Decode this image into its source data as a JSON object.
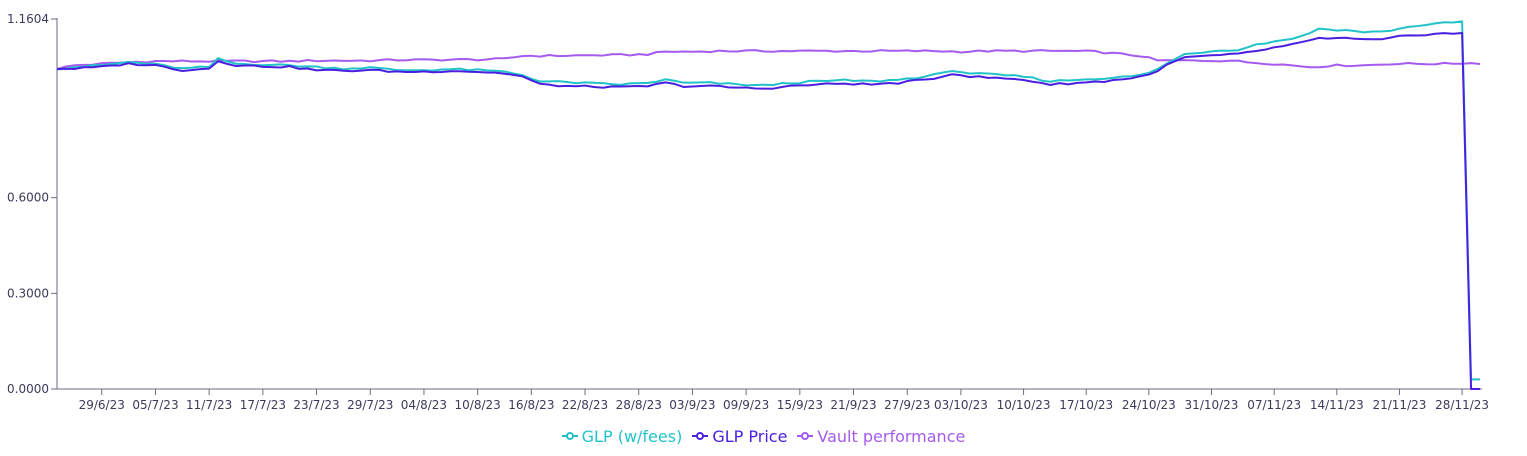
{
  "chart_data": {
    "type": "line",
    "title": "",
    "xlabel": "",
    "ylabel": "",
    "ylim": [
      0,
      1.1604
    ],
    "y_ticks": [
      {
        "value": 0,
        "label": "0.0000"
      },
      {
        "value": 0.3,
        "label": "0.3000"
      },
      {
        "value": 0.6,
        "label": "0.6000"
      },
      {
        "value": 1.1604,
        "label": "1.1604"
      }
    ],
    "x_ticks": [
      {
        "index": 5,
        "label": "29/6/23"
      },
      {
        "index": 11,
        "label": "05/7/23"
      },
      {
        "index": 17,
        "label": "11/7/23"
      },
      {
        "index": 23,
        "label": "17/7/23"
      },
      {
        "index": 29,
        "label": "23/7/23"
      },
      {
        "index": 35,
        "label": "29/7/23"
      },
      {
        "index": 41,
        "label": "04/8/23"
      },
      {
        "index": 47,
        "label": "10/8/23"
      },
      {
        "index": 53,
        "label": "16/8/23"
      },
      {
        "index": 59,
        "label": "22/8/23"
      },
      {
        "index": 65,
        "label": "28/8/23"
      },
      {
        "index": 71,
        "label": "03/9/23"
      },
      {
        "index": 77,
        "label": "09/9/23"
      },
      {
        "index": 83,
        "label": "15/9/23"
      },
      {
        "index": 89,
        "label": "21/9/23"
      },
      {
        "index": 95,
        "label": "27/9/23"
      },
      {
        "index": 101,
        "label": "03/10/23"
      },
      {
        "index": 108,
        "label": "10/10/23"
      },
      {
        "index": 115,
        "label": "17/10/23"
      },
      {
        "index": 122,
        "label": "24/10/23"
      },
      {
        "index": 129,
        "label": "31/10/23"
      },
      {
        "index": 136,
        "label": "07/11/23"
      },
      {
        "index": 143,
        "label": "14/11/23"
      },
      {
        "index": 150,
        "label": "21/11/23"
      },
      {
        "index": 157,
        "label": "28/11/23"
      }
    ],
    "legend_position": "bottom-center",
    "grid": false,
    "colors": {
      "glp_fees": "#22c3c8",
      "glp_price": "#4a1fe0",
      "vault": "#a65bf0",
      "axis": "#6b6b85",
      "text": "#3b3b5c"
    },
    "legend": [
      {
        "label": "GLP (w/fees)",
        "color": "#22c3c8",
        "series_key": "glp_fees"
      },
      {
        "label": "GLP Price",
        "color": "#4a1fe0",
        "series_key": "glp_price"
      },
      {
        "label": "Vault performance",
        "color": "#a65bf0",
        "series_key": "vault"
      }
    ],
    "keyframes": {
      "glp_fees": [
        [
          0,
          1.005
        ],
        [
          2,
          1.01
        ],
        [
          5,
          1.015
        ],
        [
          8,
          1.025
        ],
        [
          11,
          1.018
        ],
        [
          14,
          1.005
        ],
        [
          17,
          1.01
        ],
        [
          18,
          1.035
        ],
        [
          20,
          1.02
        ],
        [
          23,
          1.018
        ],
        [
          26,
          1.015
        ],
        [
          29,
          1.01
        ],
        [
          32,
          1.005
        ],
        [
          35,
          1.008
        ],
        [
          38,
          1.0
        ],
        [
          41,
          1.0
        ],
        [
          44,
          1.003
        ],
        [
          47,
          1.0
        ],
        [
          50,
          0.995
        ],
        [
          52,
          0.985
        ],
        [
          54,
          0.965
        ],
        [
          57,
          0.962
        ],
        [
          60,
          0.958
        ],
        [
          63,
          0.955
        ],
        [
          66,
          0.96
        ],
        [
          68,
          0.97
        ],
        [
          70,
          0.96
        ],
        [
          73,
          0.96
        ],
        [
          76,
          0.955
        ],
        [
          79,
          0.952
        ],
        [
          82,
          0.96
        ],
        [
          85,
          0.965
        ],
        [
          88,
          0.968
        ],
        [
          91,
          0.965
        ],
        [
          94,
          0.97
        ],
        [
          97,
          0.98
        ],
        [
          99,
          0.99
        ],
        [
          100,
          1.0
        ],
        [
          102,
          0.99
        ],
        [
          105,
          0.985
        ],
        [
          108,
          0.98
        ],
        [
          111,
          0.965
        ],
        [
          114,
          0.97
        ],
        [
          117,
          0.975
        ],
        [
          120,
          0.98
        ],
        [
          122,
          0.99
        ],
        [
          124,
          1.02
        ],
        [
          126,
          1.05
        ],
        [
          129,
          1.06
        ],
        [
          132,
          1.065
        ],
        [
          134,
          1.08
        ],
        [
          136,
          1.09
        ],
        [
          138,
          1.1
        ],
        [
          139,
          1.105
        ],
        [
          141,
          1.13
        ],
        [
          144,
          1.125
        ],
        [
          146,
          1.12
        ],
        [
          148,
          1.12
        ],
        [
          150,
          1.13
        ],
        [
          152,
          1.14
        ],
        [
          154,
          1.145
        ],
        [
          156,
          1.15
        ],
        [
          157,
          1.152
        ],
        [
          158,
          0.03
        ],
        [
          159,
          0.03
        ]
      ],
      "glp_price": [
        [
          0,
          1.005
        ],
        [
          2,
          1.005
        ],
        [
          5,
          1.01
        ],
        [
          8,
          1.02
        ],
        [
          11,
          1.015
        ],
        [
          14,
          1.0
        ],
        [
          17,
          1.005
        ],
        [
          18,
          1.03
        ],
        [
          20,
          1.015
        ],
        [
          23,
          1.012
        ],
        [
          26,
          1.01
        ],
        [
          29,
          1.0
        ],
        [
          32,
          0.998
        ],
        [
          35,
          1.0
        ],
        [
          38,
          0.995
        ],
        [
          41,
          0.995
        ],
        [
          44,
          0.998
        ],
        [
          47,
          0.995
        ],
        [
          50,
          0.99
        ],
        [
          52,
          0.98
        ],
        [
          54,
          0.955
        ],
        [
          57,
          0.95
        ],
        [
          60,
          0.948
        ],
        [
          63,
          0.946
        ],
        [
          66,
          0.95
        ],
        [
          68,
          0.96
        ],
        [
          70,
          0.95
        ],
        [
          73,
          0.95
        ],
        [
          76,
          0.945
        ],
        [
          79,
          0.942
        ],
        [
          82,
          0.95
        ],
        [
          85,
          0.955
        ],
        [
          88,
          0.958
        ],
        [
          91,
          0.955
        ],
        [
          94,
          0.96
        ],
        [
          97,
          0.97
        ],
        [
          99,
          0.98
        ],
        [
          100,
          0.99
        ],
        [
          102,
          0.98
        ],
        [
          105,
          0.975
        ],
        [
          108,
          0.97
        ],
        [
          111,
          0.955
        ],
        [
          114,
          0.96
        ],
        [
          117,
          0.965
        ],
        [
          120,
          0.975
        ],
        [
          122,
          0.985
        ],
        [
          124,
          1.015
        ],
        [
          126,
          1.04
        ],
        [
          129,
          1.045
        ],
        [
          132,
          1.05
        ],
        [
          134,
          1.06
        ],
        [
          136,
          1.07
        ],
        [
          138,
          1.08
        ],
        [
          139,
          1.085
        ],
        [
          141,
          1.1
        ],
        [
          144,
          1.1
        ],
        [
          146,
          1.095
        ],
        [
          148,
          1.095
        ],
        [
          150,
          1.105
        ],
        [
          152,
          1.11
        ],
        [
          154,
          1.115
        ],
        [
          156,
          1.115
        ],
        [
          157,
          1.115
        ],
        [
          158,
          0.0
        ],
        [
          159,
          0.0
        ]
      ],
      "vault": [
        [
          0,
          1.005
        ],
        [
          2,
          1.015
        ],
        [
          5,
          1.02
        ],
        [
          8,
          1.025
        ],
        [
          11,
          1.028
        ],
        [
          14,
          1.028
        ],
        [
          17,
          1.028
        ],
        [
          20,
          1.028
        ],
        [
          23,
          1.028
        ],
        [
          26,
          1.028
        ],
        [
          29,
          1.03
        ],
        [
          32,
          1.03
        ],
        [
          35,
          1.03
        ],
        [
          38,
          1.032
        ],
        [
          41,
          1.032
        ],
        [
          44,
          1.033
        ],
        [
          47,
          1.033
        ],
        [
          50,
          1.035
        ],
        [
          52,
          1.045
        ],
        [
          55,
          1.045
        ],
        [
          58,
          1.046
        ],
        [
          61,
          1.047
        ],
        [
          64,
          1.048
        ],
        [
          66,
          1.05
        ],
        [
          68,
          1.058
        ],
        [
          71,
          1.058
        ],
        [
          74,
          1.06
        ],
        [
          77,
          1.06
        ],
        [
          80,
          1.06
        ],
        [
          83,
          1.06
        ],
        [
          86,
          1.06
        ],
        [
          89,
          1.06
        ],
        [
          92,
          1.06
        ],
        [
          95,
          1.06
        ],
        [
          98,
          1.06
        ],
        [
          101,
          1.058
        ],
        [
          104,
          1.06
        ],
        [
          107,
          1.06
        ],
        [
          110,
          1.06
        ],
        [
          113,
          1.06
        ],
        [
          116,
          1.058
        ],
        [
          119,
          1.05
        ],
        [
          121,
          1.045
        ],
        [
          123,
          1.03
        ],
        [
          126,
          1.03
        ],
        [
          129,
          1.03
        ],
        [
          131,
          1.03
        ],
        [
          133,
          1.025
        ],
        [
          136,
          1.02
        ],
        [
          138,
          1.015
        ],
        [
          140,
          1.01
        ],
        [
          143,
          1.015
        ],
        [
          146,
          1.015
        ],
        [
          149,
          1.02
        ],
        [
          152,
          1.02
        ],
        [
          155,
          1.02
        ],
        [
          157,
          1.022
        ],
        [
          159,
          1.022
        ]
      ]
    }
  }
}
